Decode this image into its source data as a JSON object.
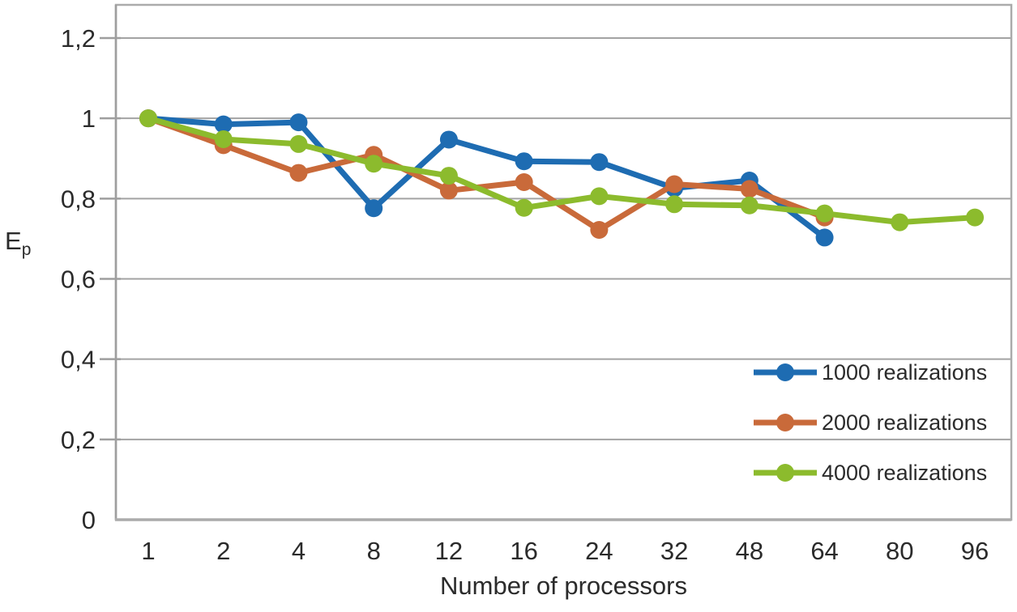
{
  "chart_data": {
    "type": "line",
    "title": "",
    "xlabel": "Number of processors",
    "ylabel": "E",
    "ylabel_subscript": "p",
    "categories": [
      "1",
      "2",
      "4",
      "8",
      "12",
      "16",
      "24",
      "32",
      "48",
      "64",
      "80",
      "96"
    ],
    "series": [
      {
        "name": "1000 realizations",
        "color": "#1E6CB2",
        "values": [
          1.0,
          0.985,
          0.99,
          0.776,
          0.947,
          0.893,
          0.891,
          0.826,
          0.845,
          0.703,
          null,
          null
        ]
      },
      {
        "name": "2000 realizations",
        "color": "#C96A3A",
        "values": [
          1.0,
          0.933,
          0.864,
          0.909,
          0.82,
          0.841,
          0.722,
          0.836,
          0.824,
          0.753,
          null,
          null
        ]
      },
      {
        "name": "4000 realizations",
        "color": "#8CBB2D",
        "values": [
          1.0,
          0.948,
          0.936,
          0.887,
          0.857,
          0.777,
          0.806,
          0.786,
          0.783,
          0.763,
          0.741,
          0.753
        ]
      }
    ],
    "y_ticks": [
      {
        "value": 0,
        "label": "0"
      },
      {
        "value": 0.2,
        "label": "0,2"
      },
      {
        "value": 0.4,
        "label": "0,4"
      },
      {
        "value": 0.6,
        "label": "0,6"
      },
      {
        "value": 0.8,
        "label": "0,8"
      },
      {
        "value": 1,
        "label": "1"
      },
      {
        "value": 1.2,
        "label": "1,2"
      }
    ],
    "ylim": [
      0,
      1.2
    ],
    "grid": "horizontal",
    "legend_position": "inside-right",
    "decimal_separator": ","
  },
  "colors": {
    "grid": "#A3A3A3",
    "axis": "#9E9E9E",
    "border": "#ABABAB",
    "text": "#2B2B2B",
    "background": "#FFFFFF"
  }
}
